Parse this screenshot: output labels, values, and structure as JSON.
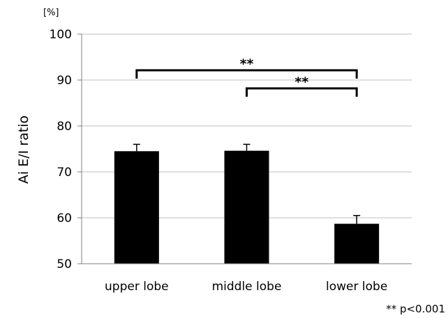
{
  "chart_data": {
    "type": "bar",
    "title": "",
    "ylabel": "Ai E/I ratio",
    "unit": "[%]",
    "ylim": [
      50,
      100
    ],
    "yticks": [
      "50",
      "60",
      "70",
      "80",
      "90",
      "100"
    ],
    "categories": [
      "upper lobe",
      "middle lobe",
      "lower lobe"
    ],
    "values": [
      74.5,
      74.6,
      58.7
    ],
    "errors": [
      1.5,
      1.4,
      1.8
    ],
    "bar_color": "#000000",
    "grid": true,
    "significance": [
      {
        "from": 0,
        "to": 2,
        "label": "**"
      },
      {
        "from": 1,
        "to": 2,
        "label": "**"
      }
    ],
    "note": "** p<0.001"
  }
}
